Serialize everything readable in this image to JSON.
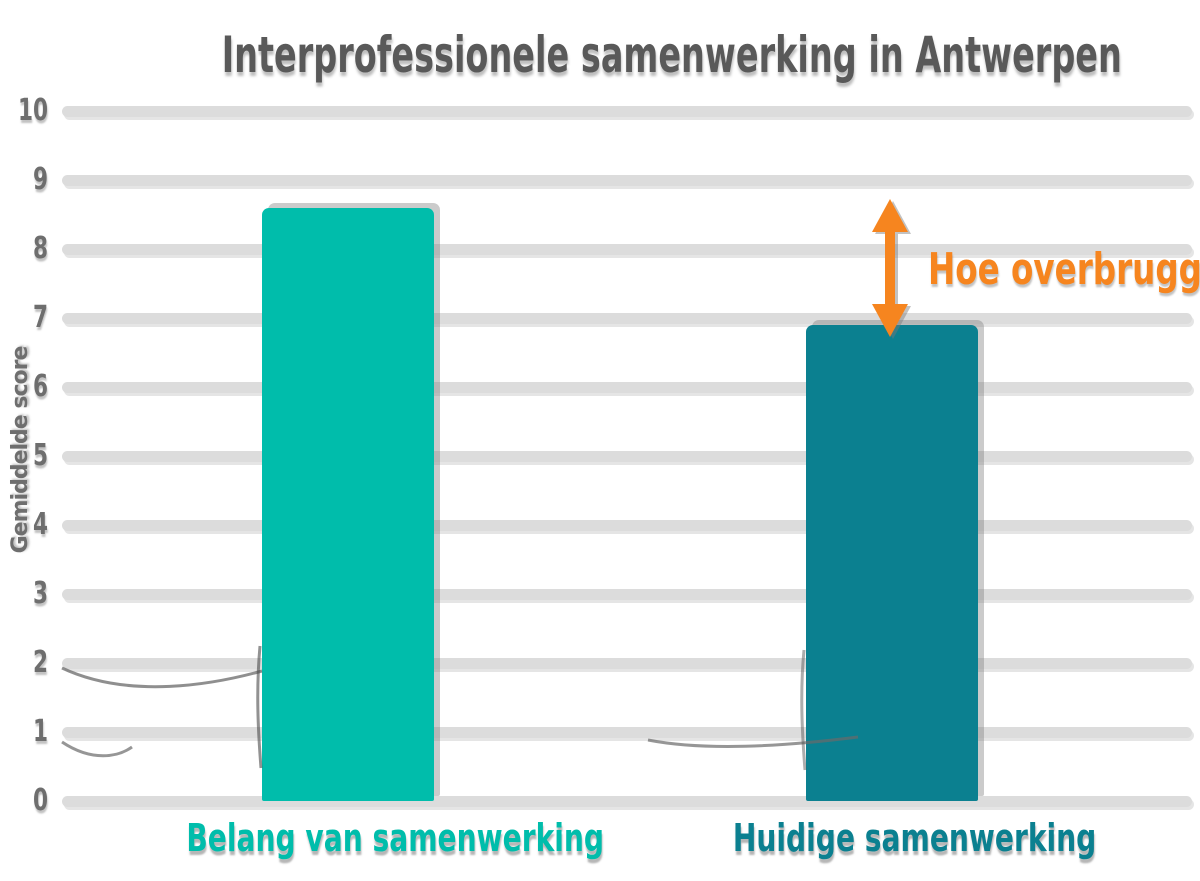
{
  "title": "Interprofessionele samenwerking in Antwerpen",
  "y_axis": {
    "label": "Gemiddelde score",
    "ticks": [
      "10",
      "9",
      "8",
      "7",
      "6",
      "5",
      "4",
      "3",
      "2",
      "1",
      "0"
    ]
  },
  "chart_data": {
    "type": "bar",
    "categories": [
      "Belang van samenwerking",
      "Huidige samenwerking"
    ],
    "values": [
      8.6,
      6.9
    ],
    "title": "Interprofessionele samenwerking in Antwerpen",
    "xlabel": "",
    "ylabel": "Gemiddelde score",
    "ylim": [
      0,
      10
    ],
    "grid": true,
    "legend": false,
    "bar_colors": [
      "#00bdab",
      "#0b8090"
    ],
    "annotation": {
      "text": "Hoe overbruggen?",
      "type": "double-headed-vertical-arrow",
      "marks_gap_between": [
        "Belang van samenwerking",
        "Huidige samenwerking"
      ]
    }
  },
  "annotation": {
    "text": "Hoe overbruggen?"
  },
  "colors": {
    "teal": "#00bdab",
    "darkteal": "#0b8090",
    "orange": "#f6851f",
    "gray_title": "#595959",
    "gray_tick": "#6e6e6e",
    "gridline": "#dcdcdc",
    "background": "#ffffff"
  }
}
